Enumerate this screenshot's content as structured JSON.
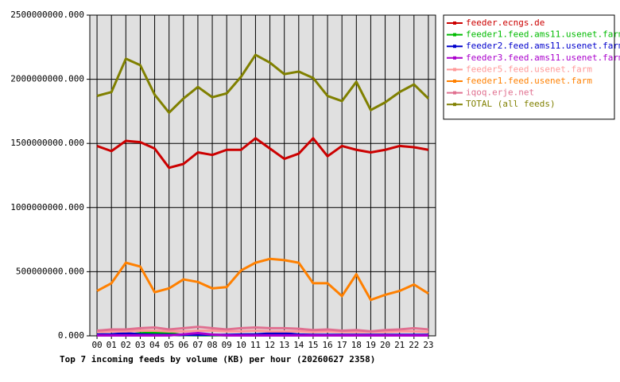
{
  "chart_data": {
    "type": "line",
    "title": "Top 7 incoming feeds by volume (KB) per hour (20260627 2358)",
    "categories": [
      "00",
      "01",
      "02",
      "03",
      "04",
      "05",
      "06",
      "07",
      "08",
      "09",
      "10",
      "11",
      "12",
      "13",
      "14",
      "15",
      "16",
      "17",
      "18",
      "19",
      "20",
      "21",
      "22",
      "23"
    ],
    "ylim": [
      0,
      2500000000
    ],
    "yticks": [
      {
        "value": 0,
        "label": "0.000"
      },
      {
        "value": 500000000,
        "label": "500000000.000"
      },
      {
        "value": 1000000000,
        "label": "1000000000.000"
      },
      {
        "value": 1500000000,
        "label": "1500000000.000"
      },
      {
        "value": 2000000000,
        "label": "2000000000.000"
      },
      {
        "value": 2500000000,
        "label": "2500000000.000"
      }
    ],
    "grid": true,
    "legend": "right",
    "series": [
      {
        "name": "feeder.ecngs.de",
        "color": "#cc0000",
        "values": [
          1480000000,
          1440000000,
          1520000000,
          1510000000,
          1460000000,
          1310000000,
          1340000000,
          1430000000,
          1410000000,
          1450000000,
          1450000000,
          1540000000,
          1460000000,
          1380000000,
          1420000000,
          1540000000,
          1400000000,
          1480000000,
          1450000000,
          1430000000,
          1450000000,
          1480000000,
          1470000000,
          1450000000
        ]
      },
      {
        "name": "feeder1.feed.ams11.usenet.farm",
        "color": "#00bb00",
        "values": [
          5000000,
          5000000,
          8000000,
          20000000,
          25000000,
          22000000,
          6000000,
          5000000,
          5000000,
          5000000,
          5000000,
          5000000,
          5000000,
          5000000,
          5000000,
          5000000,
          5000000,
          5000000,
          5000000,
          5000000,
          5000000,
          5000000,
          5000000,
          5000000
        ]
      },
      {
        "name": "feeder2.feed.ams11.usenet.farm",
        "color": "#0000cc",
        "values": [
          10000000,
          12000000,
          20000000,
          12000000,
          8000000,
          8000000,
          8000000,
          8000000,
          8000000,
          8000000,
          10000000,
          12000000,
          18000000,
          20000000,
          10000000,
          8000000,
          8000000,
          8000000,
          8000000,
          8000000,
          8000000,
          8000000,
          8000000,
          8000000
        ]
      },
      {
        "name": "feeder3.feed.ams11.usenet.farm",
        "color": "#aa00cc",
        "values": [
          3000000,
          3000000,
          3000000,
          3000000,
          3000000,
          3000000,
          12000000,
          22000000,
          10000000,
          3000000,
          3000000,
          3000000,
          3000000,
          3000000,
          3000000,
          3000000,
          3000000,
          3000000,
          3000000,
          3000000,
          3000000,
          3000000,
          3000000,
          3000000
        ]
      },
      {
        "name": "feeder5.feed.usenet.farm",
        "color": "#ff9999",
        "values": [
          30000000,
          35000000,
          35000000,
          40000000,
          40000000,
          35000000,
          35000000,
          40000000,
          40000000,
          35000000,
          35000000,
          40000000,
          35000000,
          35000000,
          35000000,
          30000000,
          35000000,
          30000000,
          30000000,
          30000000,
          30000000,
          35000000,
          35000000,
          30000000
        ]
      },
      {
        "name": "feeder1.feed.usenet.farm",
        "color": "#ff8000",
        "values": [
          350000000,
          410000000,
          570000000,
          540000000,
          340000000,
          370000000,
          440000000,
          420000000,
          370000000,
          380000000,
          510000000,
          570000000,
          600000000,
          590000000,
          570000000,
          410000000,
          410000000,
          310000000,
          480000000,
          280000000,
          320000000,
          350000000,
          400000000,
          330000000
        ]
      },
      {
        "name": "iqoq.erje.net",
        "color": "#e07090",
        "values": [
          40000000,
          50000000,
          50000000,
          60000000,
          65000000,
          50000000,
          60000000,
          70000000,
          60000000,
          50000000,
          60000000,
          65000000,
          60000000,
          60000000,
          55000000,
          45000000,
          50000000,
          40000000,
          45000000,
          35000000,
          45000000,
          50000000,
          60000000,
          50000000
        ]
      },
      {
        "name": "TOTAL (all feeds)",
        "color": "#808000",
        "values": [
          1870000000,
          1900000000,
          2160000000,
          2110000000,
          1880000000,
          1740000000,
          1850000000,
          1940000000,
          1860000000,
          1890000000,
          2020000000,
          2190000000,
          2130000000,
          2040000000,
          2060000000,
          2010000000,
          1870000000,
          1830000000,
          1980000000,
          1760000000,
          1820000000,
          1900000000,
          1960000000,
          1850000000
        ]
      }
    ]
  }
}
